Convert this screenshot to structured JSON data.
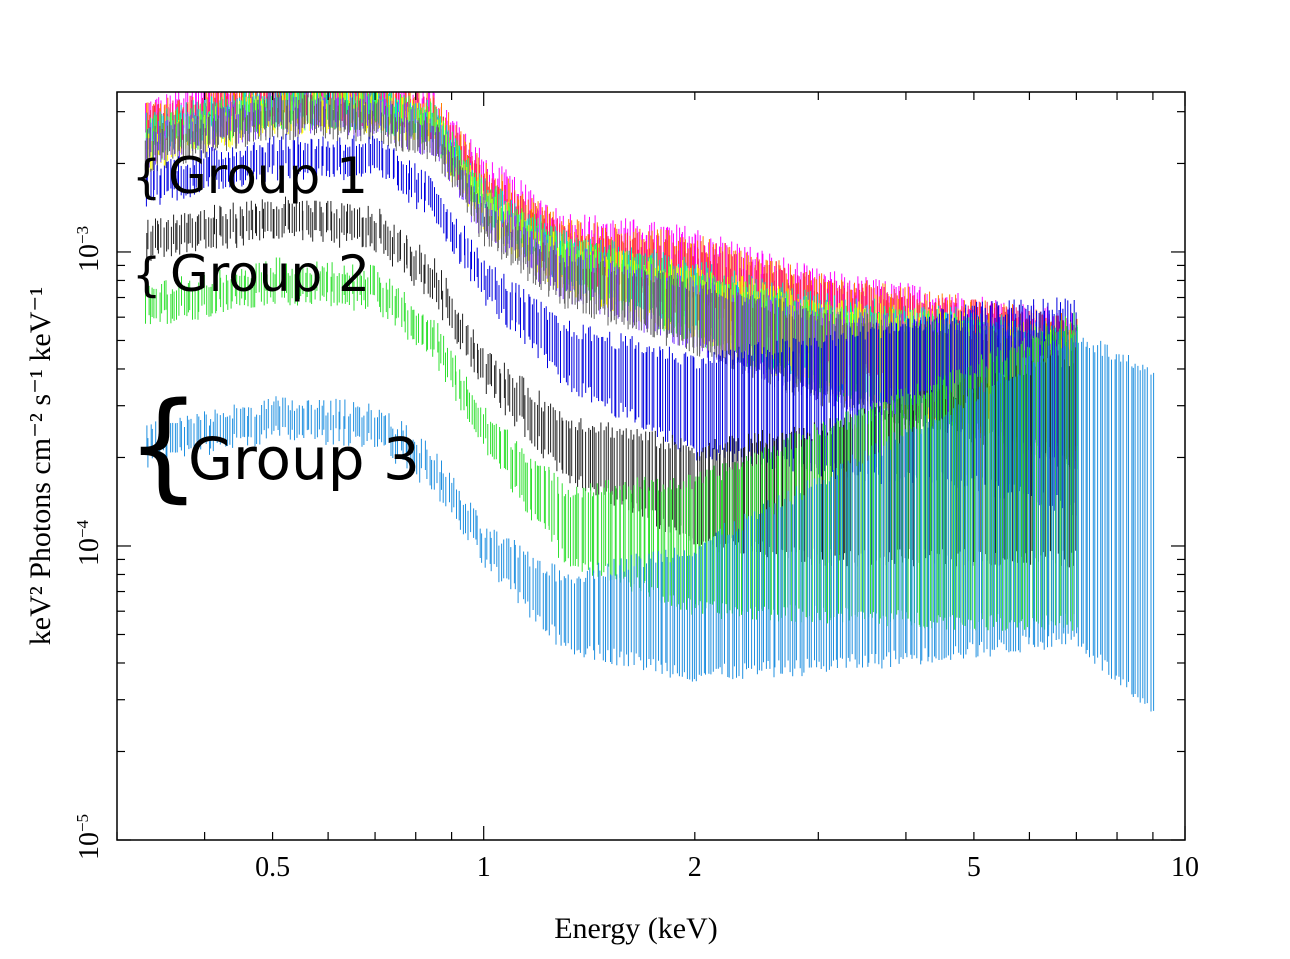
{
  "chart_data": {
    "type": "scatter",
    "title": "",
    "xlabel": "Energy (keV)",
    "ylabel": "keV² Photons cm⁻² s⁻¹ keV⁻¹",
    "xscale": "log",
    "yscale": "log",
    "xlim": [
      0.3,
      10
    ],
    "ylim": [
      1e-05,
      0.0035
    ],
    "x_ticks": [
      {
        "value": 0.5,
        "label": "0.5"
      },
      {
        "value": 1,
        "label": "1"
      },
      {
        "value": 2,
        "label": "2"
      },
      {
        "value": 5,
        "label": "5"
      },
      {
        "value": 10,
        "label": "10"
      }
    ],
    "y_ticks": [
      {
        "value": 1e-05,
        "base": "10",
        "exp": "−5"
      },
      {
        "value": 0.0001,
        "base": "10",
        "exp": "−4"
      },
      {
        "value": 0.001,
        "base": "10",
        "exp": "−3"
      }
    ],
    "grid": false,
    "groups": [
      {
        "label": "Group 1",
        "brace": "{",
        "color_list": [
          "#ff00ff",
          "#ff7f00",
          "#ff1a66",
          "#00e5cc",
          "#ffff00",
          "#40ff40",
          "#8040ff",
          "#606060",
          "#ff3030",
          "#c040ff"
        ]
      },
      {
        "label": "Group 2",
        "brace": "{",
        "color_list": [
          "#0000e0",
          "#202020"
        ]
      },
      {
        "label": "Group 3",
        "brace": "{",
        "color_list": [
          "#30e030",
          "#2090e0"
        ]
      }
    ],
    "series": [
      {
        "color": "#ff00ff",
        "group": 1,
        "x": [
          0.33,
          0.5,
          0.7,
          0.85,
          1.0,
          1.3,
          2.0,
          3.0,
          5.0,
          7.0
        ],
        "y": [
          0.0028,
          0.0036,
          0.0034,
          0.003,
          0.0018,
          0.0011,
          0.0009,
          0.0006,
          0.00045,
          0.00037
        ]
      },
      {
        "color": "#ff7f00",
        "group": 1,
        "x": [
          0.33,
          0.5,
          0.7,
          0.85,
          1.0,
          1.3,
          2.0,
          3.0,
          5.0,
          7.0
        ],
        "y": [
          0.0027,
          0.0034,
          0.0033,
          0.0029,
          0.0017,
          0.00105,
          0.00085,
          0.00058,
          0.00044,
          0.00036
        ]
      },
      {
        "color": "#ff1a66",
        "group": 1,
        "x": [
          0.33,
          0.5,
          0.7,
          0.85,
          1.0,
          1.3,
          2.0,
          3.0,
          5.0,
          7.0
        ],
        "y": [
          0.0026,
          0.0033,
          0.0032,
          0.0028,
          0.0016,
          0.001,
          0.0008,
          0.00056,
          0.00043,
          0.00035
        ]
      },
      {
        "color": "#00e5cc",
        "group": 1,
        "x": [
          0.33,
          0.5,
          0.7,
          0.85,
          1.0,
          1.3,
          2.0,
          3.0,
          5.0,
          7.0
        ],
        "y": [
          0.0025,
          0.0032,
          0.0031,
          0.0027,
          0.0015,
          0.00095,
          0.0007,
          0.0005,
          0.0004,
          0.00033
        ]
      },
      {
        "color": "#ffff00",
        "group": 1,
        "x": [
          0.33,
          0.5,
          0.7,
          0.85,
          1.0,
          1.3,
          2.0,
          3.0,
          5.0,
          7.0
        ],
        "y": [
          0.0022,
          0.003,
          0.003,
          0.0026,
          0.0014,
          0.0009,
          0.00068,
          0.00048,
          0.00039,
          0.00032
        ]
      },
      {
        "color": "#40ff40",
        "group": 1,
        "x": [
          0.33,
          0.5,
          0.7,
          0.85,
          1.0,
          1.3,
          2.0,
          3.0,
          5.0,
          7.0
        ],
        "y": [
          0.0024,
          0.0031,
          0.0031,
          0.0027,
          0.00145,
          0.00092,
          0.00066,
          0.00047,
          0.00038,
          0.00031
        ]
      },
      {
        "color": "#8040ff",
        "group": 1,
        "x": [
          0.33,
          0.5,
          0.7,
          0.85,
          1.0,
          1.3,
          2.0,
          3.0,
          5.0,
          7.0
        ],
        "y": [
          0.0023,
          0.003,
          0.0029,
          0.0025,
          0.0013,
          0.00085,
          0.00062,
          0.00045,
          0.00037,
          0.0003
        ]
      },
      {
        "color": "#606060",
        "group": 1,
        "x": [
          0.33,
          0.5,
          0.7,
          0.85,
          1.0,
          1.3,
          2.0,
          3.0,
          5.0,
          7.0
        ],
        "y": [
          0.0022,
          0.0029,
          0.0028,
          0.0024,
          0.00125,
          0.0008,
          0.0006,
          0.00044,
          0.00036,
          0.0003
        ]
      },
      {
        "color": "#0000e0",
        "group": 2,
        "x": [
          0.33,
          0.5,
          0.7,
          0.85,
          1.0,
          1.3,
          2.0,
          3.0,
          5.0,
          7.0
        ],
        "y": [
          0.0017,
          0.0021,
          0.0021,
          0.0015,
          0.0008,
          0.00045,
          0.0003,
          0.0003,
          0.00032,
          0.0003
        ]
      },
      {
        "color": "#202020",
        "group": 2,
        "x": [
          0.33,
          0.5,
          0.7,
          0.85,
          1.0,
          1.3,
          2.0,
          3.0,
          5.0,
          7.0
        ],
        "y": [
          0.0011,
          0.0013,
          0.0012,
          0.0008,
          0.0004,
          0.00022,
          0.00015,
          0.00015,
          0.00018,
          0.0002
        ]
      },
      {
        "color": "#30e030",
        "group": 3,
        "x": [
          0.33,
          0.5,
          0.7,
          0.85,
          1.0,
          1.3,
          2.0,
          3.0,
          5.0,
          7.0
        ],
        "y": [
          0.00065,
          0.0008,
          0.00075,
          0.0005,
          0.00025,
          0.00012,
          0.0001,
          0.00012,
          0.00015,
          0.00018
        ]
      },
      {
        "color": "#2090e0",
        "group": 3,
        "x": [
          0.33,
          0.5,
          0.7,
          0.85,
          1.0,
          1.3,
          2.0,
          3.0,
          5.0,
          7.0,
          9.0
        ],
        "y": [
          0.00022,
          0.00027,
          0.00026,
          0.00018,
          0.0001,
          6e-05,
          6e-05,
          8e-05,
          0.00012,
          0.00016,
          0.0001
        ]
      }
    ]
  }
}
